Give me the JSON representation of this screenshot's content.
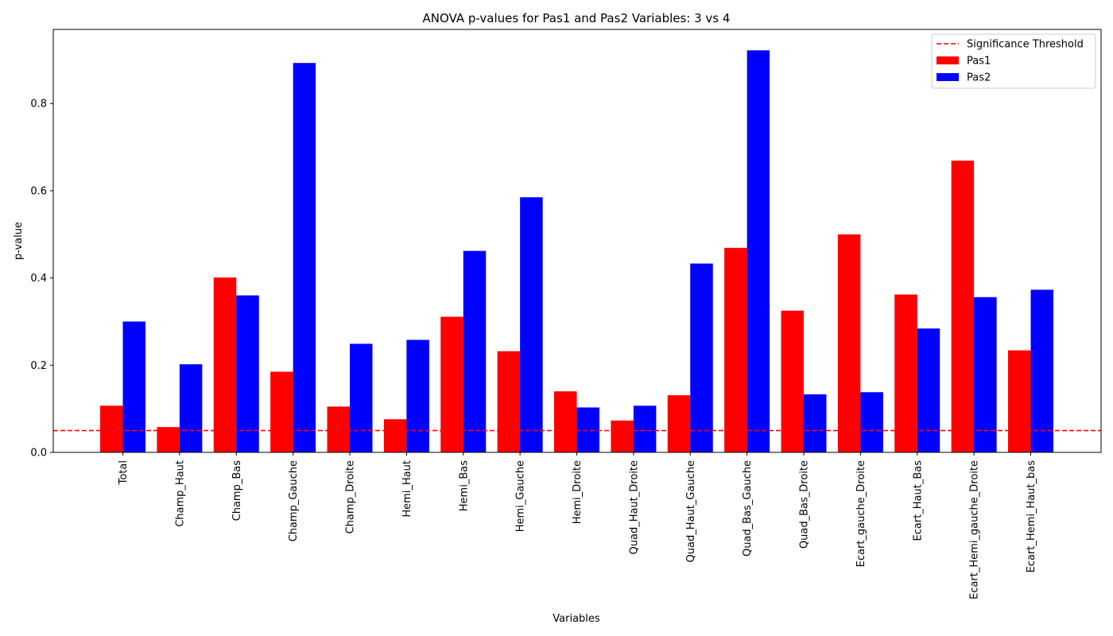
{
  "chart_data": {
    "type": "bar",
    "title": "ANOVA p-values for Pas1 and Pas2 Variables: 3 vs 4",
    "xlabel": "Variables",
    "ylabel": "p-value",
    "ylim": [
      0,
      0.97
    ],
    "yticks": [
      "0.0",
      "0.2",
      "0.4",
      "0.6",
      "0.8"
    ],
    "categories": [
      "Total",
      "Champ_Haut",
      "Champ_Bas",
      "Champ_Gauche",
      "Champ_Droite",
      "Hemi_Haut",
      "Hemi_Bas",
      "Hemi_Gauche",
      "Hemi_Droite",
      "Quad_Haut_Droite",
      "Quad_Haut_Gauche",
      "Quad_Bas_Gauche",
      "Quad_Bas_Droite",
      "Ecart_gauche_Droite",
      "Ecart_Haut_Bas",
      "Ecart_Hemi_gauche_Droite",
      "Ecart_Hemi_Haut_bas"
    ],
    "series": [
      {
        "name": "Pas1",
        "color": "#ff0000",
        "values": [
          0.107,
          0.058,
          0.401,
          0.185,
          0.105,
          0.076,
          0.311,
          0.232,
          0.14,
          0.073,
          0.131,
          0.469,
          0.325,
          0.5,
          0.362,
          0.669,
          0.234
        ]
      },
      {
        "name": "Pas2",
        "color": "#0000ff",
        "values": [
          0.3,
          0.202,
          0.36,
          0.893,
          0.249,
          0.258,
          0.462,
          0.585,
          0.103,
          0.107,
          0.433,
          0.922,
          0.133,
          0.138,
          0.284,
          0.356,
          0.373
        ]
      }
    ],
    "threshold": {
      "name": "Significance Threshold",
      "value": 0.05,
      "color": "#ff0000"
    },
    "legend_position": "top-right",
    "grid": false
  }
}
